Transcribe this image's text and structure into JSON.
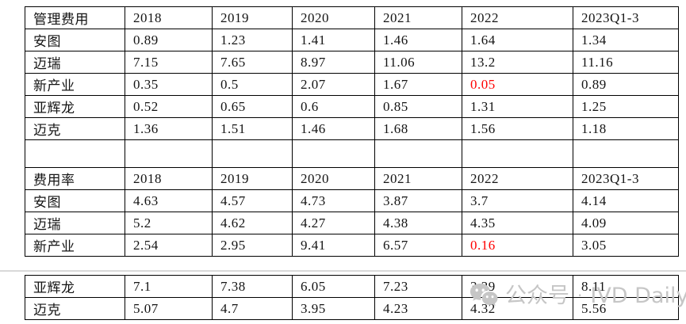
{
  "page": {
    "background": "#ffffff",
    "border_color": "#000000",
    "highlight_red": "#ff0000",
    "divider_color": "#d9d9d9",
    "watermark_color": "#c6c6c6"
  },
  "tables": {
    "upper": {
      "rows": [
        {
          "header": true,
          "cells": [
            "管理费用",
            "2018",
            "2019",
            "2020",
            "2021",
            "2022",
            "2023Q1-3"
          ]
        },
        {
          "cells": [
            "安图",
            "0.89",
            "1.23",
            "1.41",
            "1.46",
            "1.64",
            "1.34"
          ]
        },
        {
          "cells": [
            "迈瑞",
            "7.15",
            "7.65",
            "8.97",
            "11.06",
            "13.2",
            "11.16"
          ]
        },
        {
          "cells": [
            "新产业",
            "0.35",
            "0.5",
            "2.07",
            "1.67",
            {
              "text": "0.05",
              "red": true
            },
            "0.89"
          ]
        },
        {
          "cells": [
            "亚辉龙",
            "0.52",
            "0.65",
            "0.6",
            "0.85",
            "1.31",
            "1.25"
          ]
        },
        {
          "cells": [
            "迈克",
            "1.36",
            "1.51",
            "1.46",
            "1.68",
            "1.56",
            "1.18"
          ]
        },
        {
          "empty": true,
          "cells": [
            "",
            "",
            "",
            "",
            "",
            "",
            ""
          ]
        },
        {
          "header": true,
          "cells": [
            "费用率",
            "2018",
            "2019",
            "2020",
            "2021",
            "2022",
            "2023Q1-3"
          ]
        },
        {
          "cells": [
            "安图",
            "4.63",
            "4.57",
            "4.73",
            "3.87",
            "3.7",
            "4.14"
          ]
        },
        {
          "cells": [
            "迈瑞",
            "5.2",
            "4.62",
            "4.27",
            "4.38",
            "4.35",
            "4.09"
          ]
        },
        {
          "cells": [
            "新产业",
            "2.54",
            "2.95",
            "9.41",
            "6.57",
            {
              "text": "0.16",
              "red": true
            },
            "3.05"
          ]
        }
      ]
    },
    "lower": {
      "rows": [
        {
          "cells": [
            "亚辉龙",
            "7.1",
            "7.38",
            "6.05",
            "7.23",
            "3.29",
            "8.11"
          ]
        },
        {
          "cells": [
            "迈克",
            "5.07",
            "4.7",
            "3.95",
            "4.23",
            "4.32",
            "5.56"
          ]
        }
      ]
    }
  },
  "watermark": {
    "icon": "wechat-logo-icon",
    "text_cn": "公众号",
    "separator": "·",
    "text_en": "IVD Daily"
  },
  "chart_data": [
    {
      "type": "table",
      "title": "管理费用",
      "columns": [
        "2018",
        "2019",
        "2020",
        "2021",
        "2022",
        "2023Q1-3"
      ],
      "series": [
        {
          "name": "安图",
          "values": [
            0.89,
            1.23,
            1.41,
            1.46,
            1.64,
            1.34
          ]
        },
        {
          "name": "迈瑞",
          "values": [
            7.15,
            7.65,
            8.97,
            11.06,
            13.2,
            11.16
          ]
        },
        {
          "name": "新产业",
          "values": [
            0.35,
            0.5,
            2.07,
            1.67,
            0.05,
            0.89
          ]
        },
        {
          "name": "亚辉龙",
          "values": [
            0.52,
            0.65,
            0.6,
            0.85,
            1.31,
            1.25
          ]
        },
        {
          "name": "迈克",
          "values": [
            1.36,
            1.51,
            1.46,
            1.68,
            1.56,
            1.18
          ]
        }
      ],
      "highlighted_values": [
        {
          "series": "新产业",
          "column": "2022",
          "value": 0.05,
          "color": "#ff0000"
        }
      ]
    },
    {
      "type": "table",
      "title": "费用率",
      "columns": [
        "2018",
        "2019",
        "2020",
        "2021",
        "2022",
        "2023Q1-3"
      ],
      "series": [
        {
          "name": "安图",
          "values": [
            4.63,
            4.57,
            4.73,
            3.87,
            3.7,
            4.14
          ]
        },
        {
          "name": "迈瑞",
          "values": [
            5.2,
            4.62,
            4.27,
            4.38,
            4.35,
            4.09
          ]
        },
        {
          "name": "新产业",
          "values": [
            2.54,
            2.95,
            9.41,
            6.57,
            0.16,
            3.05
          ]
        },
        {
          "name": "亚辉龙",
          "values": [
            7.1,
            7.38,
            6.05,
            7.23,
            3.29,
            8.11
          ]
        },
        {
          "name": "迈克",
          "values": [
            5.07,
            4.7,
            3.95,
            4.23,
            4.32,
            5.56
          ]
        }
      ],
      "highlighted_values": [
        {
          "series": "新产业",
          "column": "2022",
          "value": 0.16,
          "color": "#ff0000"
        }
      ]
    }
  ]
}
